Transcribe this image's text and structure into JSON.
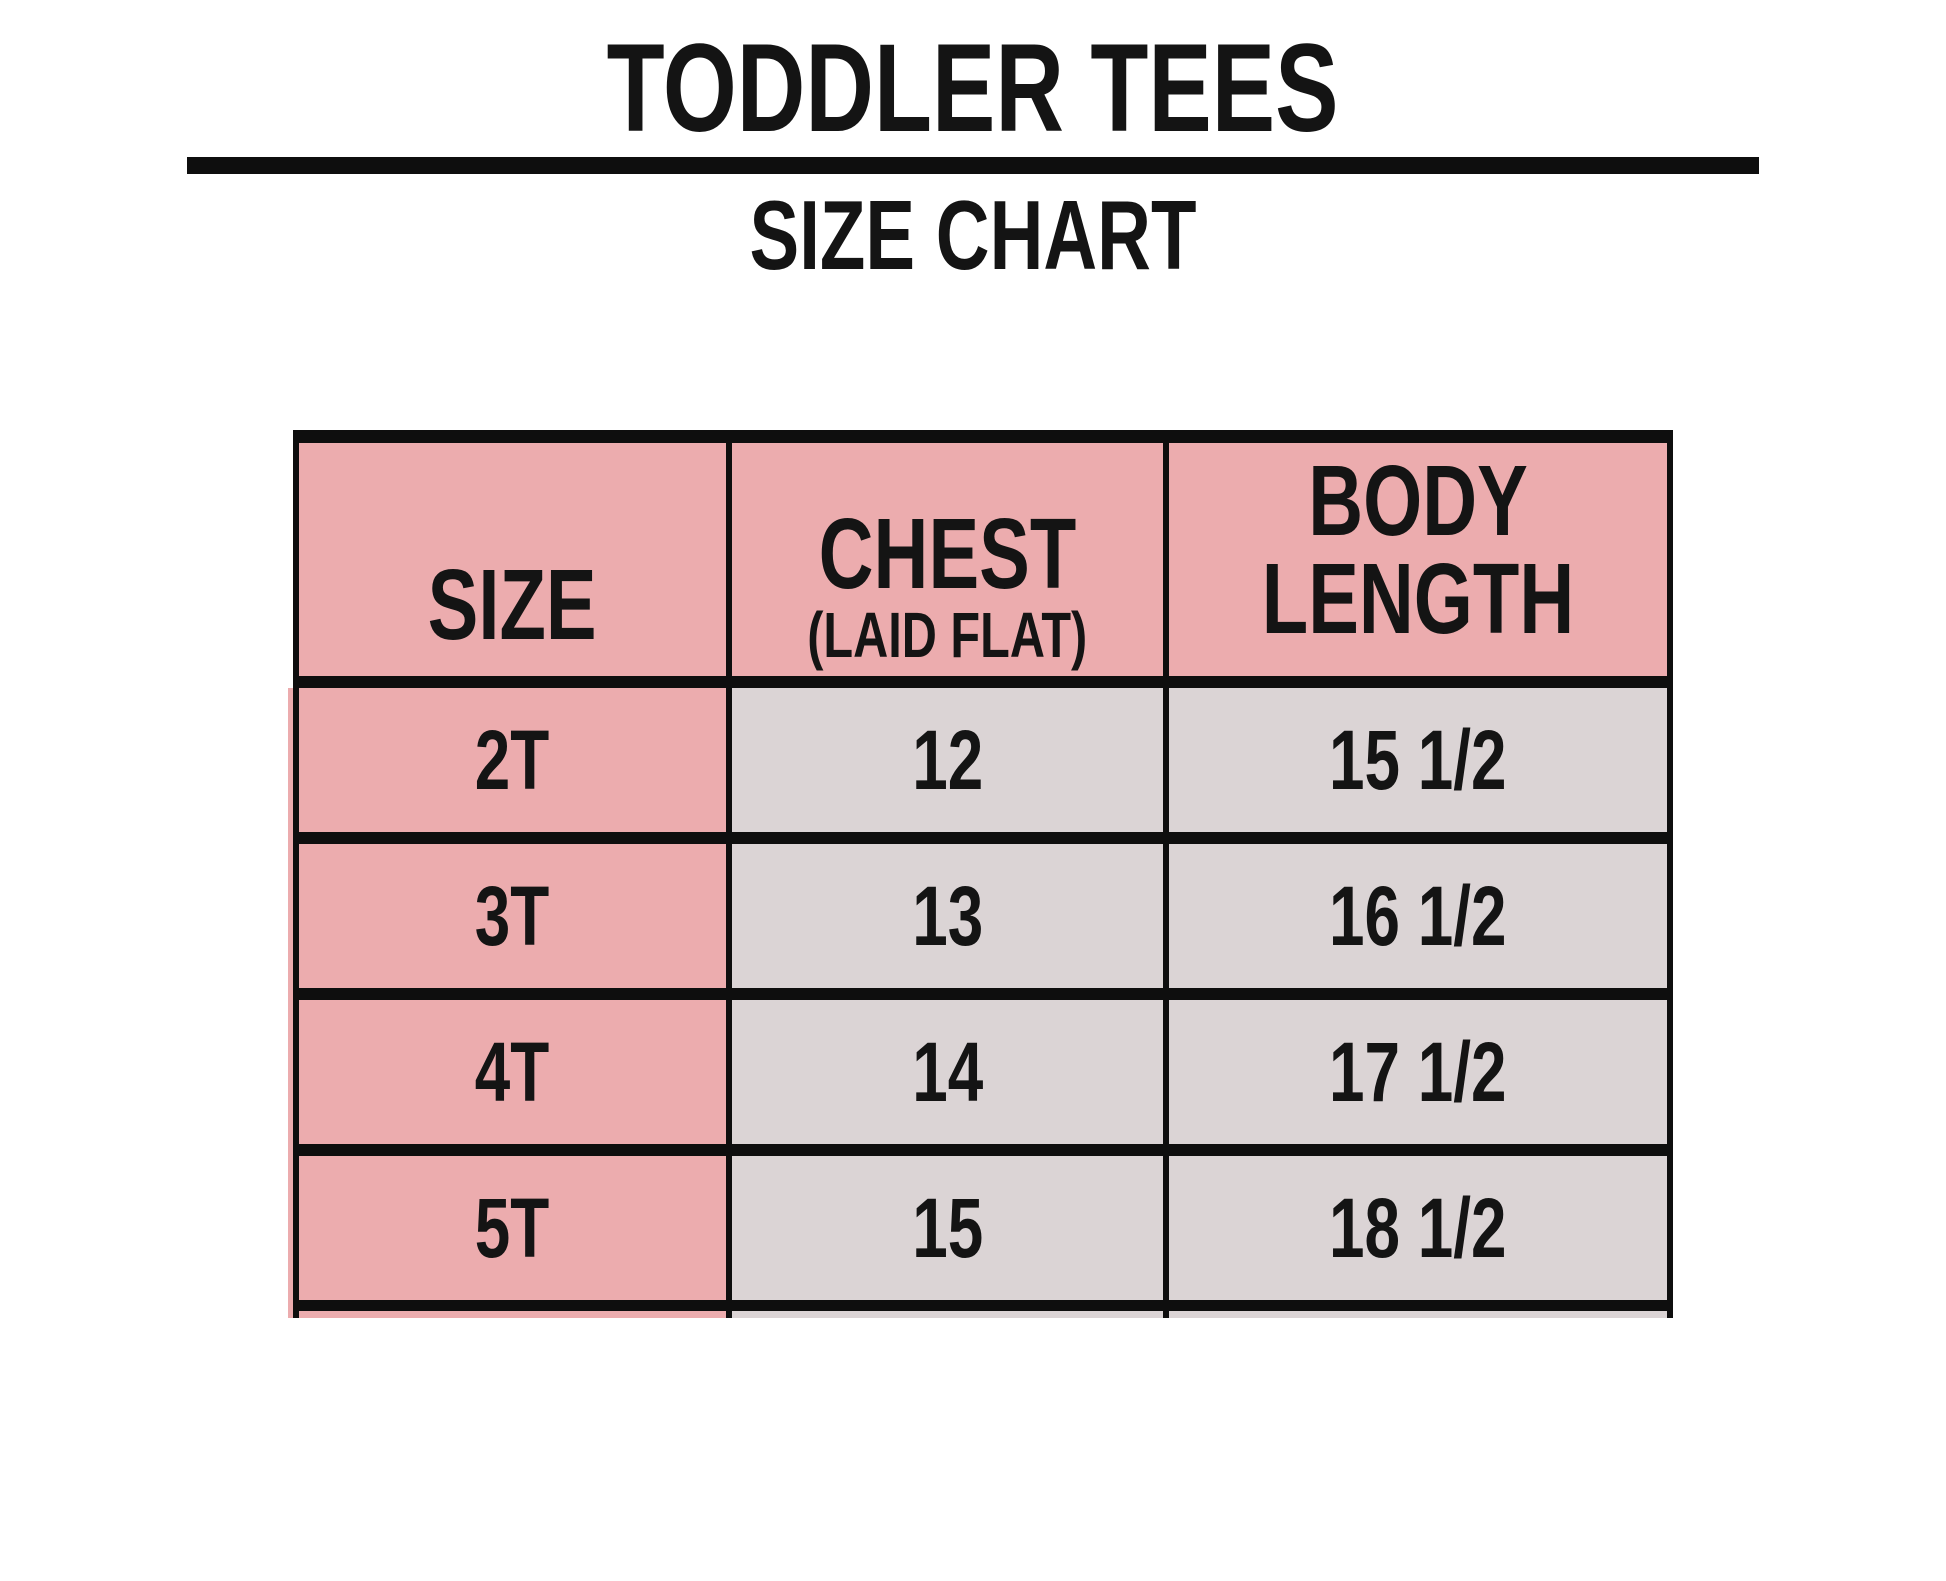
{
  "header": {
    "title": "TODDLER TEES",
    "subtitle": "SIZE CHART"
  },
  "table": {
    "columns": [
      {
        "label": "SIZE",
        "sublabel": ""
      },
      {
        "label": "CHEST",
        "sublabel": "(LAID FLAT)"
      },
      {
        "label": "BODY LENGTH",
        "sublabel": ""
      }
    ],
    "rows": [
      {
        "size": "2T",
        "chest": "12",
        "body_length": "15 1/2"
      },
      {
        "size": "3T",
        "chest": "13",
        "body_length": "16 1/2"
      },
      {
        "size": "4T",
        "chest": "14",
        "body_length": "17 1/2"
      },
      {
        "size": "5T",
        "chest": "15",
        "body_length": "18 1/2"
      }
    ]
  },
  "colors": {
    "pink": "#ECACAE",
    "gray": "#DBD4D5",
    "line": "#0E0E0E"
  }
}
